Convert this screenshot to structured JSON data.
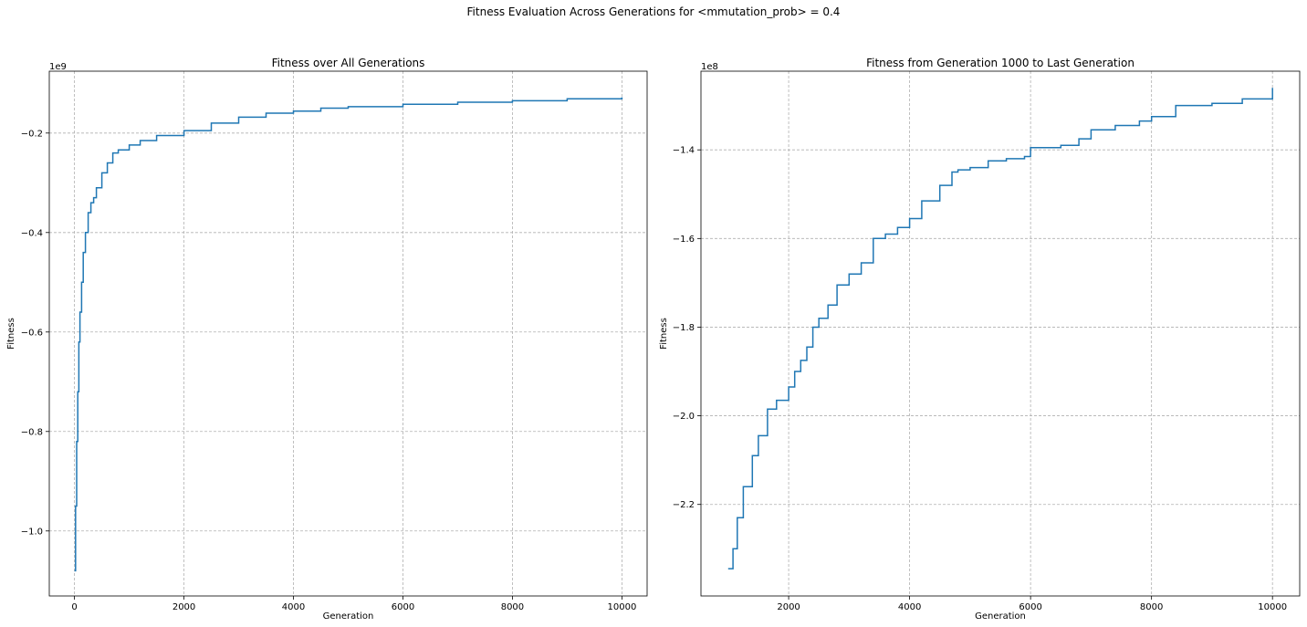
{
  "figure": {
    "suptitle": "Fitness Evaluation Across Generations for <mmutation_prob> = 0.4"
  },
  "chart_data": [
    {
      "type": "line",
      "title": "Fitness over All Generations",
      "xlabel": "Generation",
      "ylabel": "Fitness",
      "offset_text": "1e9",
      "scale": 1000000000,
      "grid": true,
      "line_style": "step",
      "color": "#1f77b4",
      "xlim": [
        -460,
        10460
      ],
      "ylim": [
        -1.1307,
        -0.0756
      ],
      "xticks": [
        0,
        2000,
        4000,
        6000,
        8000,
        10000
      ],
      "xtick_labels": [
        "0",
        "2000",
        "4000",
        "6000",
        "8000",
        "10000"
      ],
      "yticks": [
        -1.0,
        -0.8,
        -0.6,
        -0.4,
        -0.2
      ],
      "ytick_labels": [
        "−1.0",
        "−0.8",
        "−0.6",
        "−0.4",
        "−0.2"
      ],
      "x": [
        0,
        20,
        40,
        60,
        80,
        100,
        130,
        160,
        200,
        250,
        300,
        350,
        400,
        500,
        600,
        700,
        800,
        1000,
        1200,
        1500,
        2000,
        2500,
        3000,
        3500,
        4000,
        4500,
        5000,
        6000,
        7000,
        8000,
        9000,
        10000
      ],
      "values": [
        -1.08,
        -0.95,
        -0.82,
        -0.72,
        -0.62,
        -0.56,
        -0.5,
        -0.44,
        -0.4,
        -0.36,
        -0.34,
        -0.33,
        -0.31,
        -0.28,
        -0.26,
        -0.24,
        -0.234,
        -0.224,
        -0.215,
        -0.205,
        -0.195,
        -0.18,
        -0.168,
        -0.16,
        -0.156,
        -0.15,
        -0.147,
        -0.142,
        -0.138,
        -0.135,
        -0.131,
        -0.128
      ]
    },
    {
      "type": "line",
      "title": "Fitness from Generation 1000 to Last Generation",
      "xlabel": "Generation",
      "ylabel": "Fitness",
      "offset_text": "1e8",
      "scale": 100000000,
      "grid": true,
      "line_style": "step",
      "color": "#1f77b4",
      "xlim": [
        550,
        10450
      ],
      "ylim": [
        -2.4065,
        -1.2225
      ],
      "xticks": [
        2000,
        4000,
        6000,
        8000,
        10000
      ],
      "xtick_labels": [
        "2000",
        "4000",
        "6000",
        "8000",
        "10000"
      ],
      "yticks": [
        -2.2,
        -2.0,
        -1.8,
        -1.6,
        -1.4
      ],
      "ytick_labels": [
        "−2.2",
        "−2.0",
        "−1.8",
        "−1.6",
        "−1.4"
      ],
      "x": [
        1000,
        1080,
        1150,
        1250,
        1400,
        1500,
        1650,
        1800,
        2000,
        2100,
        2200,
        2300,
        2400,
        2500,
        2650,
        2800,
        3000,
        3200,
        3400,
        3600,
        3800,
        4000,
        4200,
        4500,
        4700,
        4800,
        5000,
        5300,
        5600,
        5900,
        6000,
        6500,
        6800,
        7000,
        7400,
        7800,
        8000,
        8400,
        9000,
        9500,
        10000
      ],
      "values": [
        -2.345,
        -2.3,
        -2.23,
        -2.16,
        -2.09,
        -2.045,
        -1.985,
        -1.965,
        -1.935,
        -1.9,
        -1.875,
        -1.845,
        -1.8,
        -1.78,
        -1.75,
        -1.705,
        -1.68,
        -1.655,
        -1.6,
        -1.59,
        -1.575,
        -1.555,
        -1.515,
        -1.48,
        -1.45,
        -1.445,
        -1.44,
        -1.425,
        -1.42,
        -1.415,
        -1.395,
        -1.39,
        -1.375,
        -1.355,
        -1.345,
        -1.335,
        -1.325,
        -1.3,
        -1.295,
        -1.285,
        -1.26
      ]
    }
  ]
}
